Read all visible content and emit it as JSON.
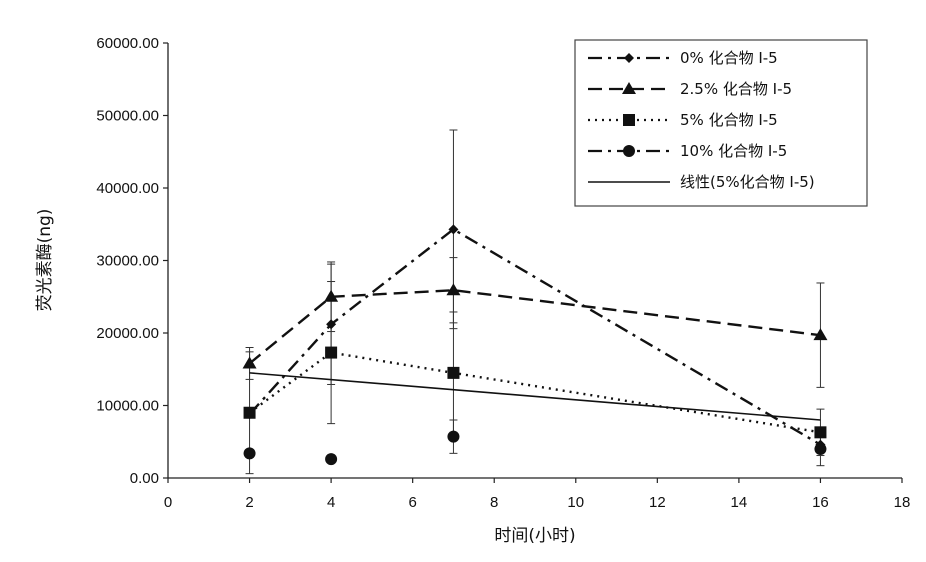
{
  "chart_data": {
    "type": "line",
    "title": "",
    "xlabel": "时间(小时)",
    "ylabel": "荧光素酶(ng)",
    "xlim": [
      0,
      18
    ],
    "ylim": [
      0,
      60000
    ],
    "x_ticks": [
      "0",
      "2",
      "4",
      "6",
      "8",
      "10",
      "12",
      "14",
      "16",
      "18"
    ],
    "y_ticks": [
      "0.00",
      "10000.00",
      "20000.00",
      "30000.00",
      "40000.00",
      "50000.00",
      "60000.00"
    ],
    "grid": false,
    "legend_position": "top-right",
    "series": [
      {
        "name": "0% 化合物 I-5",
        "marker": "diamond",
        "line_style": "dashdot",
        "x": [
          2,
          4,
          7,
          16
        ],
        "y": [
          8800,
          21200,
          34300,
          4600
        ],
        "error": [
          null,
          8300,
          13700,
          null
        ]
      },
      {
        "name": "2.5% 化合物 I-5",
        "marker": "triangle",
        "line_style": "dashed",
        "x": [
          2,
          4,
          7,
          16
        ],
        "y": [
          15800,
          25000,
          25900,
          19700
        ],
        "error": [
          2200,
          4800,
          4500,
          7200
        ]
      },
      {
        "name": "5% 化合物 I-5",
        "marker": "square",
        "line_style": "dotted",
        "x": [
          2,
          4,
          7,
          16
        ],
        "y": [
          9000,
          17300,
          14500,
          6300
        ],
        "error": [
          8400,
          9800,
          8400,
          3200
        ]
      },
      {
        "name": "10% 化合物 I-5",
        "marker": "circle",
        "line_style": "none",
        "x": [
          2,
          4,
          7,
          16
        ],
        "y": [
          3400,
          2600,
          5700,
          4000
        ],
        "error": [
          null,
          null,
          2300,
          2300
        ]
      },
      {
        "name": "线性(5%化合物 I-5)",
        "marker": "none",
        "line_style": "solid",
        "x": [
          2,
          16
        ],
        "y": [
          14500,
          8000
        ],
        "error": [
          null,
          null
        ]
      }
    ]
  }
}
